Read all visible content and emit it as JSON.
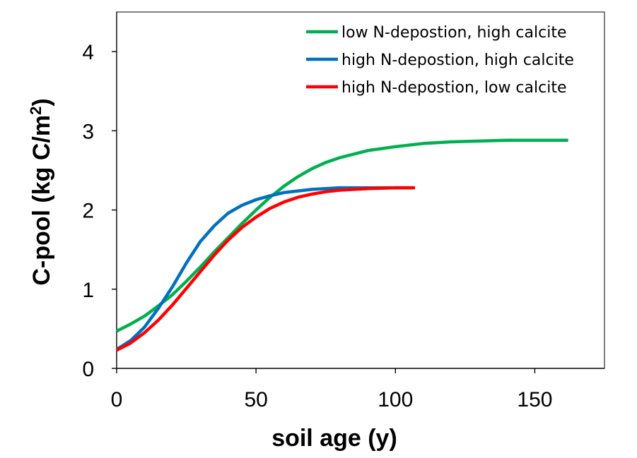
{
  "chart_data": {
    "type": "line",
    "xlabel": "soil age (y)",
    "ylabel_main": "C-pool (kg C/m",
    "ylabel_sup": "2",
    "ylabel_close": ")",
    "xlim": [
      0,
      175
    ],
    "ylim": [
      0,
      4.5
    ],
    "xticks": [
      0,
      50,
      100,
      150
    ],
    "yticks": [
      0,
      1,
      2,
      3,
      4
    ],
    "grid": false,
    "legend_position": "top-right",
    "series": [
      {
        "name": "low N-depostion, high calcite",
        "color": "#00b050",
        "x": [
          0,
          5,
          10,
          15,
          20,
          25,
          30,
          35,
          40,
          45,
          50,
          55,
          60,
          65,
          70,
          75,
          80,
          90,
          100,
          110,
          120,
          130,
          140,
          150,
          162
        ],
        "y": [
          0.47,
          0.56,
          0.66,
          0.79,
          0.93,
          1.1,
          1.28,
          1.47,
          1.65,
          1.83,
          2.0,
          2.16,
          2.3,
          2.42,
          2.52,
          2.6,
          2.66,
          2.75,
          2.8,
          2.84,
          2.86,
          2.87,
          2.88,
          2.88,
          2.88
        ]
      },
      {
        "name": "high N-depostion, high calcite",
        "color": "#0070c0",
        "x": [
          0,
          5,
          10,
          15,
          20,
          25,
          30,
          35,
          40,
          45,
          50,
          55,
          60,
          65,
          70,
          75,
          80,
          90,
          100,
          107
        ],
        "y": [
          0.24,
          0.35,
          0.52,
          0.76,
          1.03,
          1.33,
          1.6,
          1.8,
          1.96,
          2.06,
          2.13,
          2.18,
          2.22,
          2.24,
          2.26,
          2.27,
          2.28,
          2.28,
          2.28,
          2.28
        ]
      },
      {
        "name": "high N-depostion, low calcite",
        "color": "#ff0000",
        "x": [
          0,
          5,
          10,
          15,
          20,
          25,
          30,
          35,
          40,
          45,
          50,
          55,
          60,
          65,
          70,
          75,
          80,
          90,
          100,
          107
        ],
        "y": [
          0.23,
          0.32,
          0.45,
          0.61,
          0.8,
          1.01,
          1.22,
          1.43,
          1.62,
          1.78,
          1.91,
          2.02,
          2.1,
          2.16,
          2.2,
          2.23,
          2.25,
          2.27,
          2.28,
          2.28
        ]
      }
    ]
  }
}
